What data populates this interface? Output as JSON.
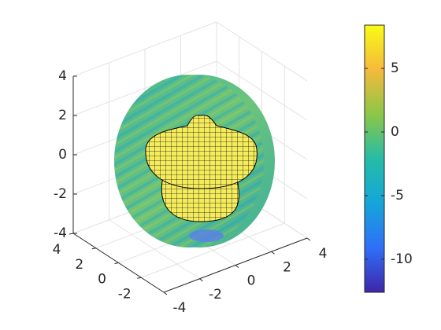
{
  "chart_data": {
    "type": "surface3d",
    "xlim": [
      -4,
      4
    ],
    "ylim": [
      -4,
      4
    ],
    "zlim": [
      -4,
      4
    ],
    "xticks": [
      -4,
      -2,
      0,
      2,
      4
    ],
    "yticks": [
      -2,
      0,
      2,
      4
    ],
    "zticks": [
      -4,
      -2,
      0,
      2,
      4
    ],
    "grid": true,
    "colorbar": {
      "clim": [
        -12.6,
        8.4
      ],
      "ticks": [
        -10,
        -5,
        0,
        5
      ],
      "colors": [
        "#3e26a8",
        "#2f6ff8",
        "#14a6d9",
        "#25bca7",
        "#8dc647",
        "#f5ba3b",
        "#f9fb15"
      ]
    }
  }
}
